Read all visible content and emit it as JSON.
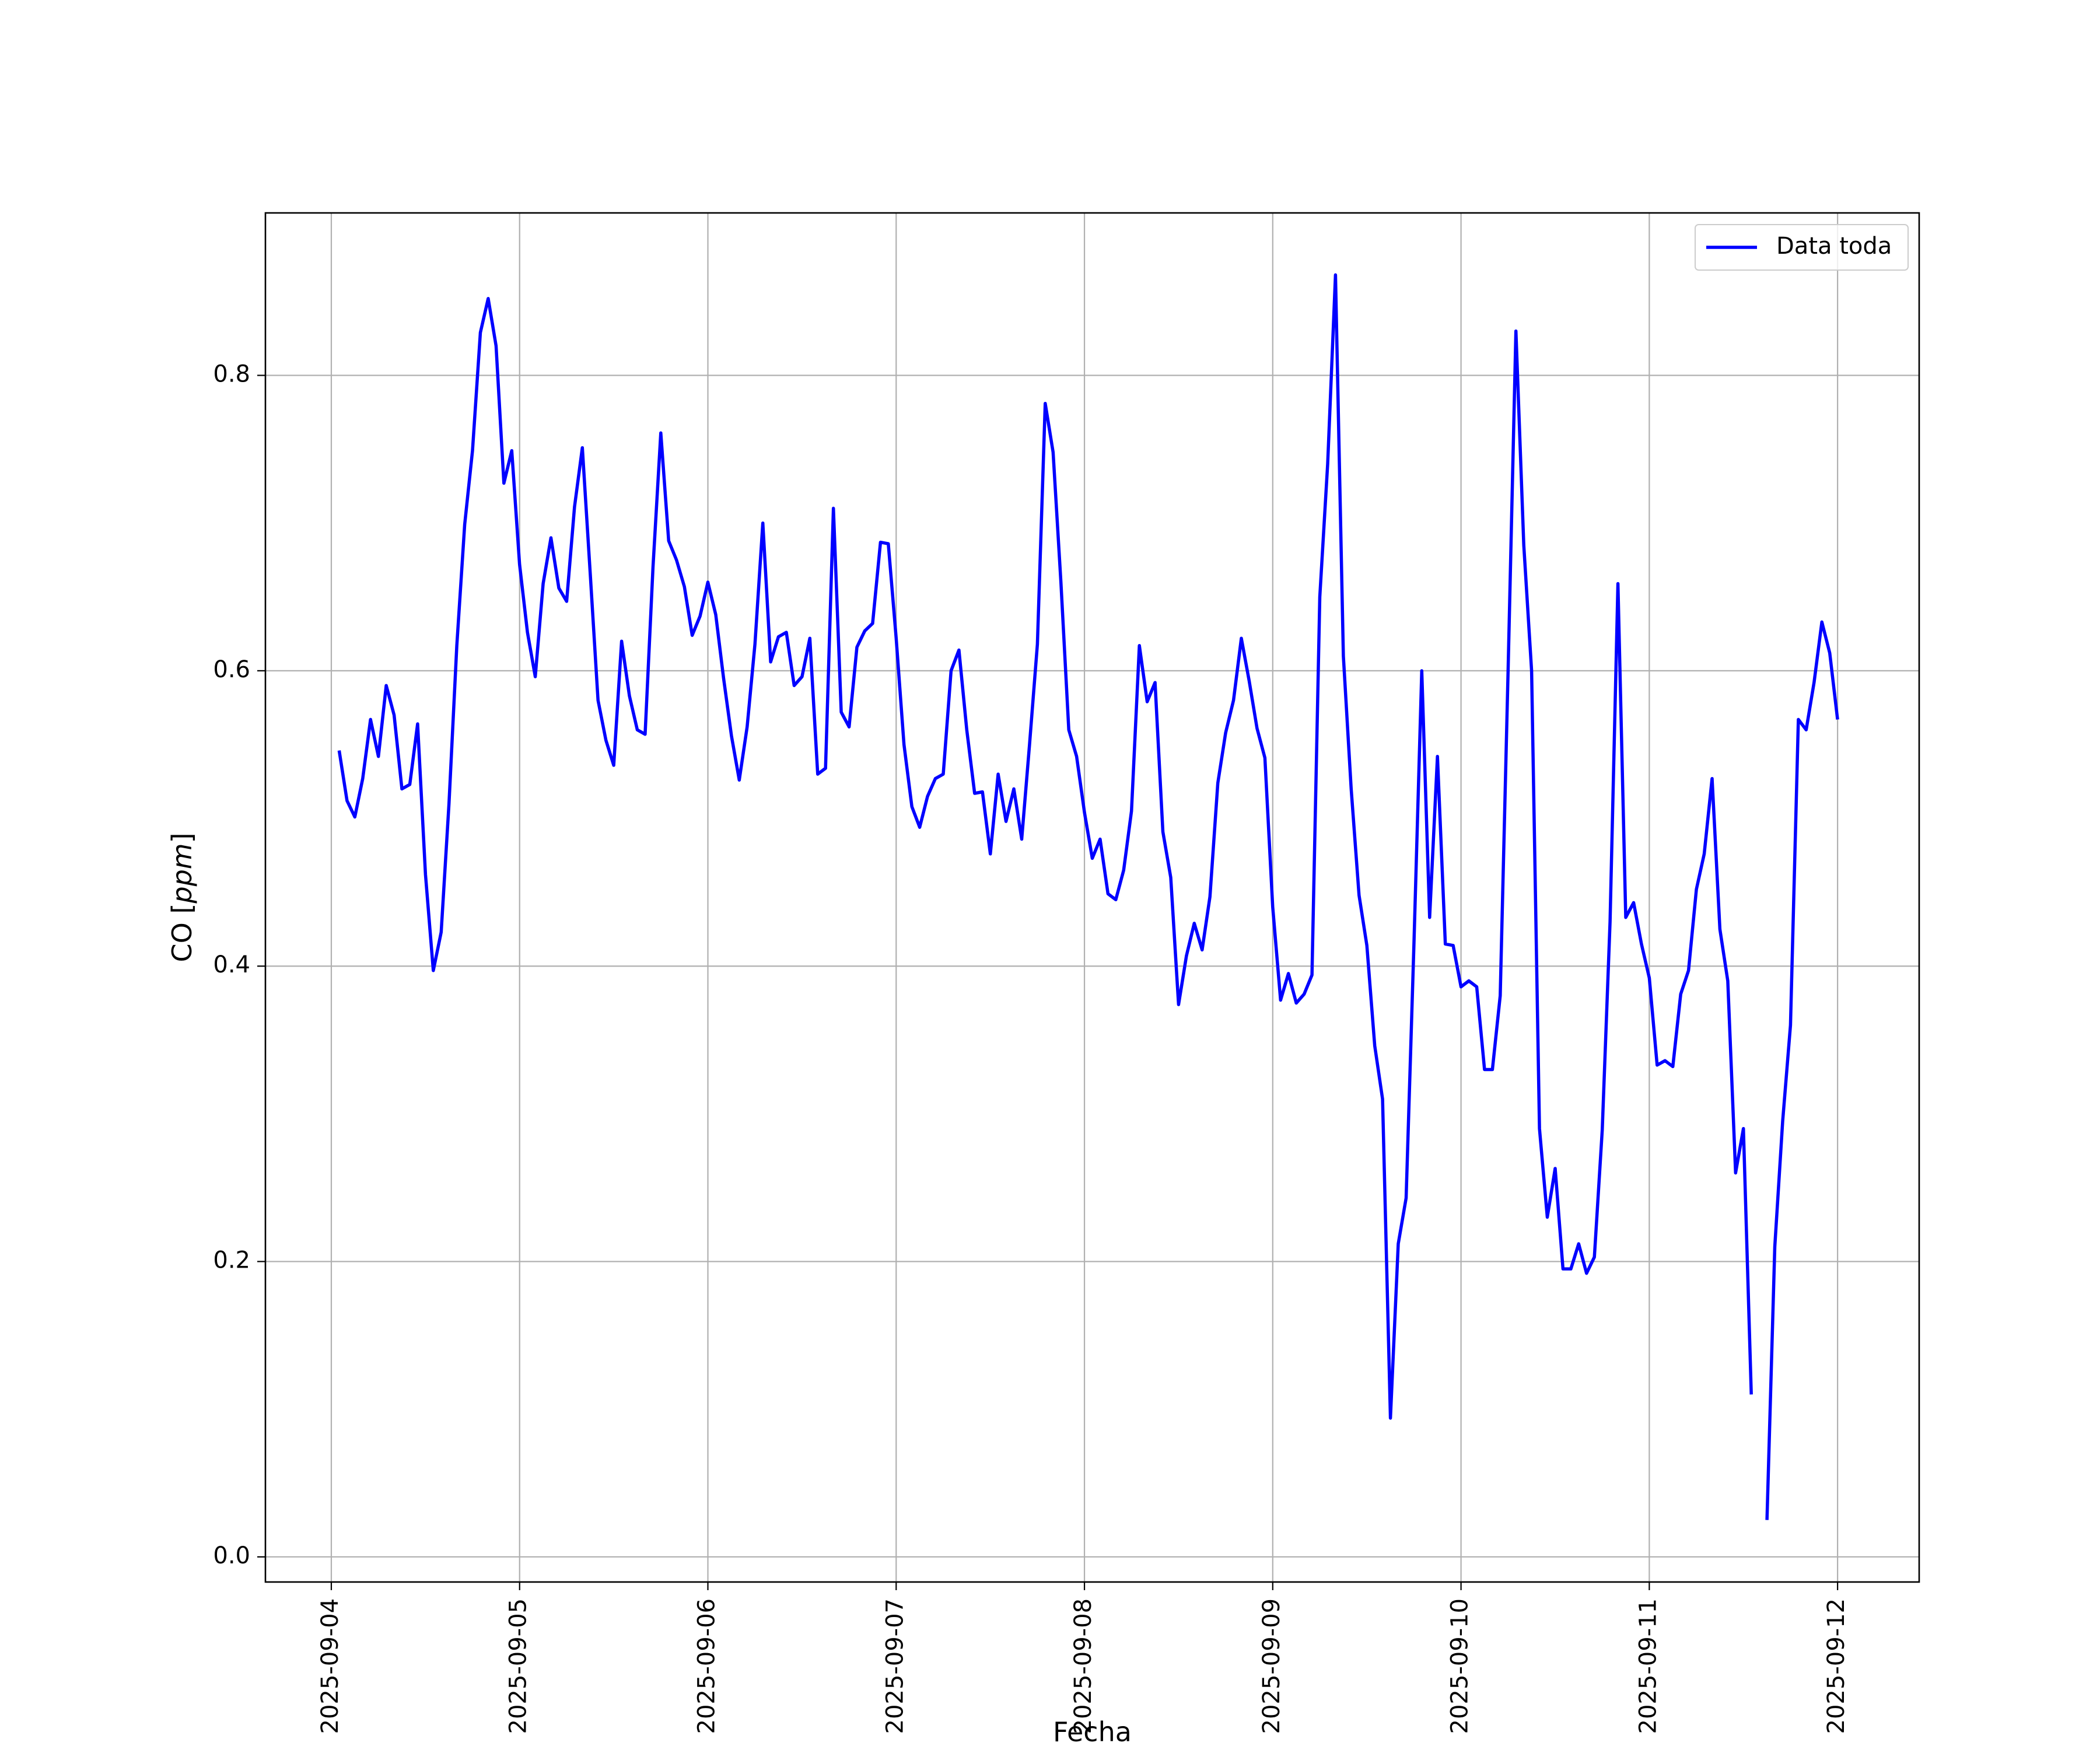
{
  "chart_data": {
    "type": "line",
    "title": "",
    "xlabel": "Fecha",
    "ylabel": "CO [ppm]",
    "ylabel_parts": {
      "prefix": "CO ",
      "open": "[",
      "unit": "ppm",
      "close": "]"
    },
    "xlim": [
      "2025-09-03T15:36",
      "2025-09-12T10:24"
    ],
    "ylim": [
      -0.017,
      0.91
    ],
    "x_ticks": [
      "2025-09-04",
      "2025-09-05",
      "2025-09-06",
      "2025-09-07",
      "2025-09-08",
      "2025-09-09",
      "2025-09-10",
      "2025-09-11",
      "2025-09-12"
    ],
    "y_ticks": [
      0.0,
      0.2,
      0.4,
      0.6,
      0.8
    ],
    "y_tick_labels": [
      "0.0",
      "0.2",
      "0.4",
      "0.6",
      "0.8"
    ],
    "grid": true,
    "legend_position": "top-right",
    "series": [
      {
        "name": "Data toda",
        "color": "#0000ff",
        "segments": [
          {
            "x": [
              "2025-09-04T01:00",
              "2025-09-04T02:00",
              "2025-09-04T03:00",
              "2025-09-04T04:00",
              "2025-09-04T05:00",
              "2025-09-04T06:00",
              "2025-09-04T07:00",
              "2025-09-04T08:00",
              "2025-09-04T09:00",
              "2025-09-04T10:00",
              "2025-09-04T11:00",
              "2025-09-04T12:00",
              "2025-09-04T13:00",
              "2025-09-04T14:00",
              "2025-09-04T15:00",
              "2025-09-04T16:00",
              "2025-09-04T17:00",
              "2025-09-04T18:00",
              "2025-09-04T19:00",
              "2025-09-04T20:00",
              "2025-09-04T21:00",
              "2025-09-04T22:00",
              "2025-09-04T23:00",
              "2025-09-05T00:00",
              "2025-09-05T01:00",
              "2025-09-05T02:00",
              "2025-09-05T03:00",
              "2025-09-05T04:00",
              "2025-09-05T05:00",
              "2025-09-05T06:00",
              "2025-09-05T07:00",
              "2025-09-05T08:00",
              "2025-09-05T09:00",
              "2025-09-05T10:00",
              "2025-09-05T11:00",
              "2025-09-05T12:00",
              "2025-09-05T13:00",
              "2025-09-05T14:00",
              "2025-09-05T15:00",
              "2025-09-05T16:00",
              "2025-09-05T17:00",
              "2025-09-05T18:00",
              "2025-09-05T19:00",
              "2025-09-05T20:00",
              "2025-09-05T21:00",
              "2025-09-05T22:00",
              "2025-09-05T23:00",
              "2025-09-06T00:00",
              "2025-09-06T01:00",
              "2025-09-06T02:00",
              "2025-09-06T03:00",
              "2025-09-06T04:00",
              "2025-09-06T05:00",
              "2025-09-06T06:00",
              "2025-09-06T07:00",
              "2025-09-06T08:00",
              "2025-09-06T09:00",
              "2025-09-06T10:00",
              "2025-09-06T11:00",
              "2025-09-06T12:00",
              "2025-09-06T13:00",
              "2025-09-06T14:00",
              "2025-09-06T15:00",
              "2025-09-06T16:00",
              "2025-09-06T17:00",
              "2025-09-06T18:00",
              "2025-09-06T19:00",
              "2025-09-06T20:00",
              "2025-09-06T21:00",
              "2025-09-06T22:00",
              "2025-09-06T23:00",
              "2025-09-07T00:00",
              "2025-09-07T01:00",
              "2025-09-07T02:00",
              "2025-09-07T03:00",
              "2025-09-07T04:00",
              "2025-09-07T05:00",
              "2025-09-07T06:00",
              "2025-09-07T07:00",
              "2025-09-07T08:00",
              "2025-09-07T09:00",
              "2025-09-07T10:00",
              "2025-09-07T11:00",
              "2025-09-07T12:00",
              "2025-09-07T13:00",
              "2025-09-07T14:00",
              "2025-09-07T15:00",
              "2025-09-07T16:00",
              "2025-09-07T17:00",
              "2025-09-07T18:00",
              "2025-09-07T19:00",
              "2025-09-07T20:00",
              "2025-09-07T21:00",
              "2025-09-07T22:00",
              "2025-09-07T23:00",
              "2025-09-08T00:00",
              "2025-09-08T01:00",
              "2025-09-08T02:00",
              "2025-09-08T03:00",
              "2025-09-08T04:00",
              "2025-09-08T05:00",
              "2025-09-08T06:00",
              "2025-09-08T07:00",
              "2025-09-08T08:00",
              "2025-09-08T09:00",
              "2025-09-08T10:00",
              "2025-09-08T11:00",
              "2025-09-08T12:00",
              "2025-09-08T13:00",
              "2025-09-08T14:00",
              "2025-09-08T15:00",
              "2025-09-08T16:00",
              "2025-09-08T17:00",
              "2025-09-08T18:00",
              "2025-09-08T19:00",
              "2025-09-08T20:00",
              "2025-09-08T21:00",
              "2025-09-08T22:00",
              "2025-09-08T23:00",
              "2025-09-09T00:00",
              "2025-09-09T01:00",
              "2025-09-09T02:00",
              "2025-09-09T03:00",
              "2025-09-09T04:00",
              "2025-09-09T05:00",
              "2025-09-09T06:00",
              "2025-09-09T07:00",
              "2025-09-09T08:00",
              "2025-09-09T09:00",
              "2025-09-09T10:00",
              "2025-09-09T11:00",
              "2025-09-09T12:00",
              "2025-09-09T13:00",
              "2025-09-09T14:00",
              "2025-09-09T15:00",
              "2025-09-09T16:00",
              "2025-09-09T17:00",
              "2025-09-09T18:00",
              "2025-09-09T19:00",
              "2025-09-09T20:00",
              "2025-09-09T21:00",
              "2025-09-09T22:00",
              "2025-09-09T23:00",
              "2025-09-10T00:00",
              "2025-09-10T01:00",
              "2025-09-10T02:00",
              "2025-09-10T03:00",
              "2025-09-10T04:00",
              "2025-09-10T05:00",
              "2025-09-10T06:00",
              "2025-09-10T07:00",
              "2025-09-10T08:00",
              "2025-09-10T09:00",
              "2025-09-10T10:00",
              "2025-09-10T11:00",
              "2025-09-10T12:00",
              "2025-09-10T13:00",
              "2025-09-10T14:00",
              "2025-09-10T15:00",
              "2025-09-10T16:00",
              "2025-09-10T17:00",
              "2025-09-10T18:00",
              "2025-09-10T19:00",
              "2025-09-10T20:00",
              "2025-09-10T21:00",
              "2025-09-10T22:00",
              "2025-09-10T23:00",
              "2025-09-11T00:00",
              "2025-09-11T01:00",
              "2025-09-11T02:00",
              "2025-09-11T03:00",
              "2025-09-11T04:00",
              "2025-09-11T05:00",
              "2025-09-11T06:00",
              "2025-09-11T07:00",
              "2025-09-11T08:00",
              "2025-09-11T09:00",
              "2025-09-11T10:00",
              "2025-09-11T11:00",
              "2025-09-11T12:00",
              "2025-09-11T13:00"
            ],
            "y": [
              0.546,
              0.512,
              0.501,
              0.527,
              0.567,
              0.542,
              0.59,
              0.57,
              0.52,
              0.523,
              0.564,
              0.462,
              0.397,
              0.423,
              0.51,
              0.617,
              0.699,
              0.749,
              0.829,
              0.852,
              0.82,
              0.727,
              0.749,
              0.672,
              0.626,
              0.596,
              0.659,
              0.69,
              0.656,
              0.647,
              0.711,
              0.751,
              0.666,
              0.58,
              0.553,
              0.536,
              0.62,
              0.583,
              0.56,
              0.557,
              0.67,
              0.761,
              0.688,
              0.675,
              0.657,
              0.624,
              0.637,
              0.66,
              0.638,
              0.595,
              0.556,
              0.526,
              0.562,
              0.618,
              0.7,
              0.606,
              0.623,
              0.626,
              0.59,
              0.596,
              0.622,
              0.53,
              0.534,
              0.71,
              0.572,
              0.562,
              0.616,
              0.627,
              0.632,
              0.687,
              0.686,
              0.622,
              0.55,
              0.508,
              0.494,
              0.515,
              0.527,
              0.53,
              0.6,
              0.614,
              0.56,
              0.517,
              0.518,
              0.476,
              0.53,
              0.498,
              0.52,
              0.486,
              0.55,
              0.618,
              0.781,
              0.748,
              0.66,
              0.56,
              0.542,
              0.504,
              0.473,
              0.486,
              0.449,
              0.445,
              0.465,
              0.505,
              0.617,
              0.579,
              0.592,
              0.491,
              0.46,
              0.374,
              0.407,
              0.429,
              0.411,
              0.447,
              0.524,
              0.558,
              0.58,
              0.622,
              0.593,
              0.561,
              0.541,
              0.44,
              0.377,
              0.395,
              0.375,
              0.381,
              0.394,
              0.65,
              0.74,
              0.868,
              0.61,
              0.52,
              0.448,
              0.414,
              0.346,
              0.31,
              0.094,
              0.212,
              0.243,
              0.415,
              0.6,
              0.433,
              0.542,
              0.415,
              0.414,
              0.386,
              0.39,
              0.386,
              0.33,
              0.33,
              0.38,
              0.6,
              0.83,
              0.685,
              0.6,
              0.29,
              0.23,
              0.263,
              0.195,
              0.195,
              0.212,
              0.192,
              0.203,
              0.289,
              0.43,
              0.659,
              0.433,
              0.443,
              0.415,
              0.392,
              0.333,
              0.336,
              0.332,
              0.381,
              0.397,
              0.452,
              0.476,
              0.527,
              0.425,
              0.39,
              0.26,
              0.29,
              0.11
            ]
          },
          {
            "x": [
              "2025-09-11T15:00",
              "2025-09-11T16:00",
              "2025-09-11T17:00",
              "2025-09-11T18:00",
              "2025-09-11T19:00",
              "2025-09-11T20:00",
              "2025-09-11T21:00",
              "2025-09-11T22:00",
              "2025-09-11T23:00",
              "2025-09-12T00:00"
            ],
            "y": [
              0.025,
              0.21,
              0.295,
              0.36,
              0.567,
              0.56,
              0.592,
              0.633,
              0.612,
              0.567
            ]
          }
        ]
      }
    ]
  }
}
